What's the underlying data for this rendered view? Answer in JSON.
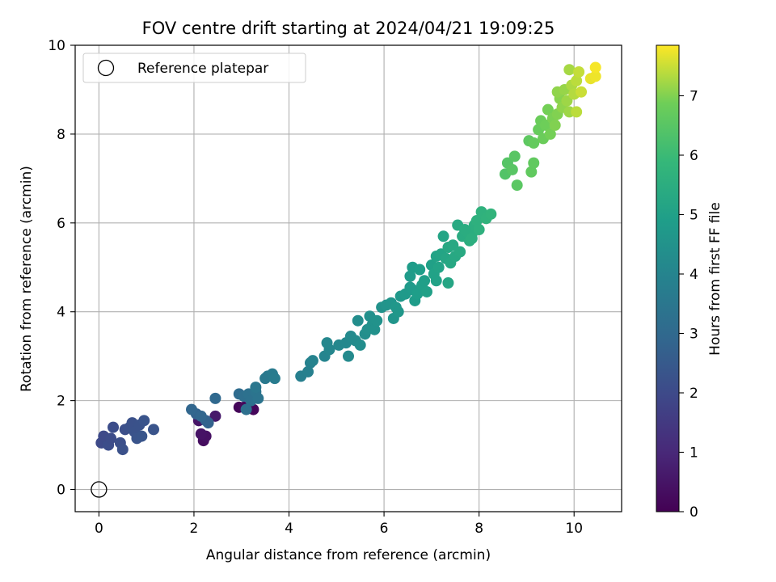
{
  "chart_data": {
    "type": "scatter",
    "title": "FOV centre drift starting at 2024/04/21 19:09:25",
    "xlabel": "Angular distance from reference (arcmin)",
    "ylabel": "Rotation from reference (arcmin)",
    "xlim": [
      -0.5,
      11
    ],
    "ylim": [
      -0.5,
      10
    ],
    "xticks": [
      0,
      2,
      4,
      6,
      8,
      10
    ],
    "yticks": [
      0,
      2,
      4,
      6,
      8,
      10
    ],
    "grid": true,
    "legend": {
      "placement": "top-left",
      "entries": [
        "Reference platepar"
      ]
    },
    "reference_point": {
      "label": "Reference platepar",
      "x": 0,
      "y": 0
    },
    "colorbar": {
      "label": "Hours from first FF file",
      "colormap": "viridis",
      "range": [
        0,
        7.85
      ],
      "ticks": [
        0,
        1,
        2,
        3,
        4,
        5,
        6,
        7
      ]
    },
    "points": [
      {
        "x": 2.2,
        "y": 1.1,
        "h": 0.3
      },
      {
        "x": 2.1,
        "y": 1.55,
        "h": 0.5
      },
      {
        "x": 2.25,
        "y": 1.2,
        "h": 0.4
      },
      {
        "x": 2.45,
        "y": 1.65,
        "h": 0.6
      },
      {
        "x": 2.15,
        "y": 1.25,
        "h": 0.45
      },
      {
        "x": 2.95,
        "y": 1.85,
        "h": 0.1
      },
      {
        "x": 3.25,
        "y": 1.8,
        "h": 0.15
      },
      {
        "x": 3.05,
        "y": 1.85,
        "h": 0.2
      },
      {
        "x": 0.05,
        "y": 1.05,
        "h": 2.0
      },
      {
        "x": 0.15,
        "y": 1.15,
        "h": 2.05
      },
      {
        "x": 0.2,
        "y": 1.0,
        "h": 2.1
      },
      {
        "x": 0.1,
        "y": 1.2,
        "h": 2.0
      },
      {
        "x": 0.3,
        "y": 1.4,
        "h": 2.1
      },
      {
        "x": 0.25,
        "y": 1.15,
        "h": 2.05
      },
      {
        "x": 0.45,
        "y": 1.05,
        "h": 2.15
      },
      {
        "x": 0.5,
        "y": 0.9,
        "h": 2.2
      },
      {
        "x": 0.55,
        "y": 1.35,
        "h": 2.15
      },
      {
        "x": 0.65,
        "y": 1.4,
        "h": 2.2
      },
      {
        "x": 0.7,
        "y": 1.5,
        "h": 2.2
      },
      {
        "x": 0.75,
        "y": 1.3,
        "h": 2.25
      },
      {
        "x": 0.8,
        "y": 1.15,
        "h": 2.3
      },
      {
        "x": 0.85,
        "y": 1.45,
        "h": 2.25
      },
      {
        "x": 0.95,
        "y": 1.55,
        "h": 2.3
      },
      {
        "x": 0.9,
        "y": 1.2,
        "h": 2.35
      },
      {
        "x": 1.15,
        "y": 1.35,
        "h": 2.3
      },
      {
        "x": 2.25,
        "y": 1.55,
        "h": 2.7
      },
      {
        "x": 2.3,
        "y": 1.5,
        "h": 2.8
      },
      {
        "x": 2.05,
        "y": 1.7,
        "h": 2.8
      },
      {
        "x": 1.95,
        "y": 1.8,
        "h": 2.9
      },
      {
        "x": 2.15,
        "y": 1.65,
        "h": 2.9
      },
      {
        "x": 2.45,
        "y": 2.05,
        "h": 3.0
      },
      {
        "x": 2.95,
        "y": 2.15,
        "h": 3.1
      },
      {
        "x": 3.05,
        "y": 2.1,
        "h": 3.2
      },
      {
        "x": 3.15,
        "y": 2.15,
        "h": 3.3
      },
      {
        "x": 3.1,
        "y": 1.8,
        "h": 3.25
      },
      {
        "x": 3.2,
        "y": 2.0,
        "h": 3.3
      },
      {
        "x": 3.3,
        "y": 2.2,
        "h": 3.4
      },
      {
        "x": 3.3,
        "y": 2.3,
        "h": 3.5
      },
      {
        "x": 3.35,
        "y": 2.05,
        "h": 3.4
      },
      {
        "x": 3.5,
        "y": 2.5,
        "h": 3.6
      },
      {
        "x": 3.55,
        "y": 2.55,
        "h": 3.6
      },
      {
        "x": 3.65,
        "y": 2.6,
        "h": 3.65
      },
      {
        "x": 3.7,
        "y": 2.5,
        "h": 3.7
      },
      {
        "x": 4.25,
        "y": 2.55,
        "h": 3.8
      },
      {
        "x": 4.4,
        "y": 2.65,
        "h": 3.85
      },
      {
        "x": 4.45,
        "y": 2.85,
        "h": 3.9
      },
      {
        "x": 4.5,
        "y": 2.9,
        "h": 3.95
      },
      {
        "x": 4.75,
        "y": 3.0,
        "h": 4.0
      },
      {
        "x": 4.85,
        "y": 3.15,
        "h": 4.05
      },
      {
        "x": 4.8,
        "y": 3.3,
        "h": 4.1
      },
      {
        "x": 5.05,
        "y": 3.25,
        "h": 4.1
      },
      {
        "x": 5.2,
        "y": 3.3,
        "h": 4.15
      },
      {
        "x": 5.25,
        "y": 3.0,
        "h": 4.2
      },
      {
        "x": 5.3,
        "y": 3.45,
        "h": 4.2
      },
      {
        "x": 5.4,
        "y": 3.35,
        "h": 4.25
      },
      {
        "x": 5.45,
        "y": 3.8,
        "h": 4.3
      },
      {
        "x": 5.5,
        "y": 3.25,
        "h": 4.3
      },
      {
        "x": 5.6,
        "y": 3.5,
        "h": 4.35
      },
      {
        "x": 5.65,
        "y": 3.6,
        "h": 4.4
      },
      {
        "x": 5.7,
        "y": 3.9,
        "h": 4.4
      },
      {
        "x": 5.75,
        "y": 3.7,
        "h": 4.45
      },
      {
        "x": 5.8,
        "y": 3.6,
        "h": 4.45
      },
      {
        "x": 5.85,
        "y": 3.8,
        "h": 4.5
      },
      {
        "x": 5.95,
        "y": 4.1,
        "h": 4.5
      },
      {
        "x": 6.05,
        "y": 4.15,
        "h": 4.55
      },
      {
        "x": 6.15,
        "y": 4.2,
        "h": 4.6
      },
      {
        "x": 6.2,
        "y": 3.85,
        "h": 4.6
      },
      {
        "x": 6.25,
        "y": 4.1,
        "h": 4.65
      },
      {
        "x": 6.3,
        "y": 4.0,
        "h": 4.65
      },
      {
        "x": 6.35,
        "y": 4.35,
        "h": 4.7
      },
      {
        "x": 6.45,
        "y": 4.4,
        "h": 4.75
      },
      {
        "x": 6.55,
        "y": 4.55,
        "h": 4.75
      },
      {
        "x": 6.6,
        "y": 4.5,
        "h": 4.8
      },
      {
        "x": 6.55,
        "y": 4.8,
        "h": 4.8
      },
      {
        "x": 6.6,
        "y": 5.0,
        "h": 4.85
      },
      {
        "x": 6.65,
        "y": 4.25,
        "h": 4.85
      },
      {
        "x": 6.7,
        "y": 4.4,
        "h": 4.9
      },
      {
        "x": 6.75,
        "y": 4.95,
        "h": 4.9
      },
      {
        "x": 6.8,
        "y": 4.6,
        "h": 4.95
      },
      {
        "x": 6.85,
        "y": 4.7,
        "h": 4.95
      },
      {
        "x": 6.9,
        "y": 4.45,
        "h": 5.0
      },
      {
        "x": 7.0,
        "y": 5.05,
        "h": 5.0
      },
      {
        "x": 7.05,
        "y": 4.85,
        "h": 5.05
      },
      {
        "x": 7.1,
        "y": 4.7,
        "h": 5.05
      },
      {
        "x": 7.1,
        "y": 5.25,
        "h": 5.1
      },
      {
        "x": 7.15,
        "y": 5.0,
        "h": 5.1
      },
      {
        "x": 7.2,
        "y": 5.3,
        "h": 5.15
      },
      {
        "x": 7.25,
        "y": 5.7,
        "h": 5.15
      },
      {
        "x": 7.3,
        "y": 5.2,
        "h": 5.2
      },
      {
        "x": 7.35,
        "y": 4.65,
        "h": 5.2
      },
      {
        "x": 7.35,
        "y": 5.45,
        "h": 5.25
      },
      {
        "x": 7.4,
        "y": 5.1,
        "h": 5.25
      },
      {
        "x": 7.45,
        "y": 5.5,
        "h": 5.3
      },
      {
        "x": 7.5,
        "y": 5.25,
        "h": 5.3
      },
      {
        "x": 7.55,
        "y": 5.95,
        "h": 5.35
      },
      {
        "x": 7.6,
        "y": 5.35,
        "h": 5.35
      },
      {
        "x": 7.65,
        "y": 5.7,
        "h": 5.4
      },
      {
        "x": 7.75,
        "y": 5.8,
        "h": 5.45
      },
      {
        "x": 7.8,
        "y": 5.6,
        "h": 5.5
      },
      {
        "x": 7.85,
        "y": 5.75,
        "h": 5.5
      },
      {
        "x": 7.9,
        "y": 5.95,
        "h": 5.55
      },
      {
        "x": 7.95,
        "y": 6.05,
        "h": 5.6
      },
      {
        "x": 8.0,
        "y": 5.85,
        "h": 5.6
      },
      {
        "x": 8.05,
        "y": 6.25,
        "h": 5.65
      },
      {
        "x": 8.15,
        "y": 6.1,
        "h": 5.7
      },
      {
        "x": 8.25,
        "y": 6.2,
        "h": 5.75
      },
      {
        "x": 7.85,
        "y": 5.65,
        "h": 5.55
      },
      {
        "x": 7.7,
        "y": 5.85,
        "h": 5.45
      },
      {
        "x": 8.55,
        "y": 7.1,
        "h": 6.4
      },
      {
        "x": 8.6,
        "y": 7.35,
        "h": 6.45
      },
      {
        "x": 8.7,
        "y": 7.2,
        "h": 6.5
      },
      {
        "x": 8.75,
        "y": 7.5,
        "h": 6.5
      },
      {
        "x": 8.8,
        "y": 6.85,
        "h": 6.55
      },
      {
        "x": 9.05,
        "y": 7.85,
        "h": 6.6
      },
      {
        "x": 9.1,
        "y": 7.15,
        "h": 6.65
      },
      {
        "x": 9.15,
        "y": 7.35,
        "h": 6.65
      },
      {
        "x": 9.15,
        "y": 7.8,
        "h": 6.7
      },
      {
        "x": 9.25,
        "y": 8.1,
        "h": 6.75
      },
      {
        "x": 9.3,
        "y": 8.3,
        "h": 6.8
      },
      {
        "x": 9.35,
        "y": 7.9,
        "h": 6.8
      },
      {
        "x": 9.4,
        "y": 8.2,
        "h": 6.85
      },
      {
        "x": 9.45,
        "y": 8.55,
        "h": 6.9
      },
      {
        "x": 9.5,
        "y": 8.0,
        "h": 6.9
      },
      {
        "x": 9.55,
        "y": 8.35,
        "h": 6.95
      },
      {
        "x": 9.6,
        "y": 8.2,
        "h": 7.0
      },
      {
        "x": 9.65,
        "y": 8.45,
        "h": 7.0
      },
      {
        "x": 9.7,
        "y": 8.8,
        "h": 7.05
      },
      {
        "x": 9.75,
        "y": 8.6,
        "h": 7.1
      },
      {
        "x": 9.65,
        "y": 8.95,
        "h": 7.1
      },
      {
        "x": 9.8,
        "y": 9.0,
        "h": 7.15
      },
      {
        "x": 9.85,
        "y": 8.75,
        "h": 7.2
      },
      {
        "x": 9.9,
        "y": 8.5,
        "h": 7.2
      },
      {
        "x": 9.9,
        "y": 9.45,
        "h": 7.25
      },
      {
        "x": 9.95,
        "y": 9.1,
        "h": 7.3
      },
      {
        "x": 10.0,
        "y": 8.9,
        "h": 7.35
      },
      {
        "x": 10.05,
        "y": 9.2,
        "h": 7.4
      },
      {
        "x": 10.05,
        "y": 8.5,
        "h": 7.4
      },
      {
        "x": 10.1,
        "y": 9.4,
        "h": 7.45
      },
      {
        "x": 10.15,
        "y": 8.95,
        "h": 7.5
      },
      {
        "x": 10.35,
        "y": 9.25,
        "h": 7.7
      },
      {
        "x": 10.45,
        "y": 9.3,
        "h": 7.75
      },
      {
        "x": 10.45,
        "y": 9.5,
        "h": 7.8
      }
    ]
  }
}
